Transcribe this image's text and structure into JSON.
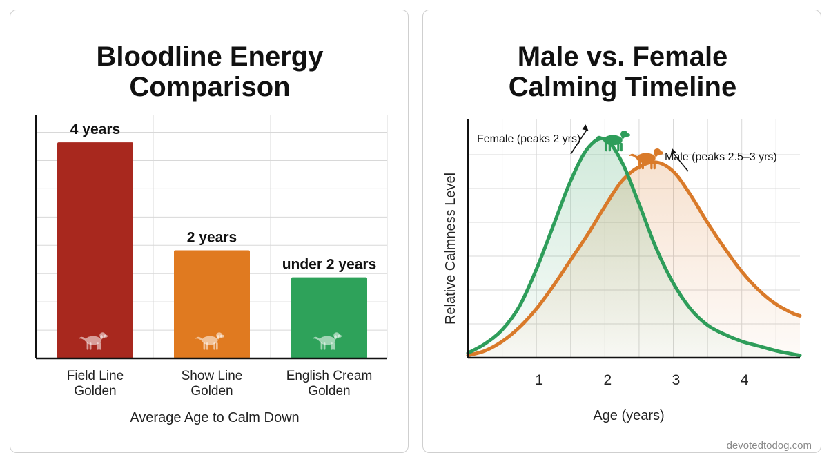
{
  "chart_data": [
    {
      "type": "bar",
      "title": "Bloodline Energy Comparison",
      "title_lines": [
        "Bloodline Energy",
        "Comparison"
      ],
      "xlabel": "Average Age to Calm Down",
      "ylabel": "",
      "ylim": [
        0,
        4.5
      ],
      "grid": true,
      "categories": [
        "Field Line Golden",
        "Show Line Golden",
        "English Cream Golden"
      ],
      "category_lines": [
        [
          "Field Line",
          "Golden"
        ],
        [
          "Show Line",
          "Golden"
        ],
        [
          "English Cream",
          "Golden"
        ]
      ],
      "values": [
        4,
        2,
        1.5
      ],
      "data_labels": [
        "4 years",
        "2 years",
        "under 2 years"
      ],
      "colors": [
        "#a8281e",
        "#e07a20",
        "#2ea25a"
      ],
      "icons": [
        "dog-icon",
        "dog-icon",
        "dog-icon"
      ]
    },
    {
      "type": "line",
      "title": "Male vs. Female Calming Timeline",
      "title_lines": [
        "Male vs. Female",
        "Calming Timeline"
      ],
      "xlabel": "Age (years)",
      "ylabel": "Relative Calmness Level",
      "xlim": [
        0,
        4.85
      ],
      "ylim": [
        0,
        1
      ],
      "xticks": [
        "1",
        "2",
        "3",
        "4"
      ],
      "grid": true,
      "series": [
        {
          "name": "Female",
          "color": "#2e9d5a",
          "peak_x": 1.8,
          "x": [
            0,
            0.25,
            0.5,
            0.75,
            1.0,
            1.25,
            1.5,
            1.75,
            2.0,
            2.25,
            2.5,
            2.75,
            3.0,
            3.25,
            3.5,
            3.75,
            4.0,
            4.25,
            4.5,
            4.75,
            4.85
          ],
          "values": [
            0.02,
            0.06,
            0.12,
            0.22,
            0.38,
            0.57,
            0.76,
            0.9,
            0.94,
            0.84,
            0.66,
            0.47,
            0.32,
            0.21,
            0.14,
            0.1,
            0.07,
            0.05,
            0.03,
            0.015,
            0.01
          ]
        },
        {
          "name": "Male",
          "color": "#d97a2a",
          "peak_x": 2.75,
          "x": [
            0,
            0.25,
            0.5,
            0.75,
            1.0,
            1.25,
            1.5,
            1.75,
            2.0,
            2.25,
            2.5,
            2.75,
            3.0,
            3.25,
            3.5,
            3.75,
            4.0,
            4.25,
            4.5,
            4.75,
            4.85
          ],
          "values": [
            0.01,
            0.03,
            0.07,
            0.13,
            0.21,
            0.31,
            0.42,
            0.53,
            0.65,
            0.76,
            0.82,
            0.84,
            0.8,
            0.7,
            0.58,
            0.47,
            0.37,
            0.29,
            0.23,
            0.19,
            0.18
          ]
        }
      ],
      "annotations": [
        {
          "text": "Female (peaks 2 yrs)",
          "series": 0,
          "icon": "dog-icon"
        },
        {
          "text": "Male (peaks 2.5–3 yrs)",
          "series": 1,
          "icon": "dog-icon"
        }
      ]
    }
  ],
  "footer": {
    "site": "devotedtodog.com"
  }
}
